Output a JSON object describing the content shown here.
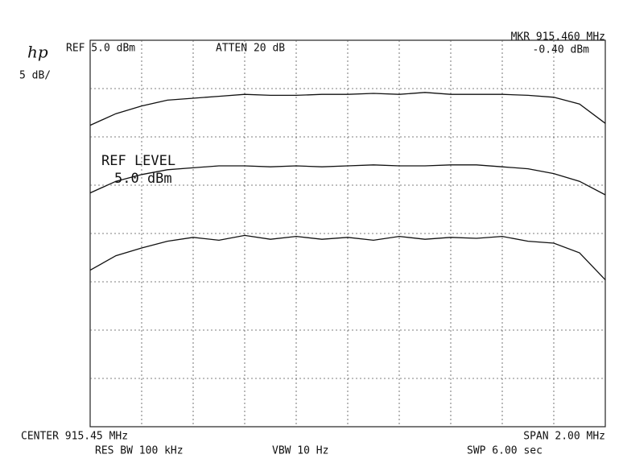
{
  "chart_data": {
    "type": "line",
    "logo": "hp",
    "ref": "REF  5.0 dBm",
    "atten": "ATTEN 20 dB",
    "marker_freq": "MKR 915.460 MHz",
    "marker_level": "-0.40 dBm",
    "scale": "5 dB/",
    "ref_level_label": "REF LEVEL",
    "ref_level_value": "5.0 dBm",
    "center": "CENTER 915.45 MHz",
    "span": "SPAN 2.00 MHz",
    "res_bw": "RES BW 100 kHz",
    "vbw": "VBW 10  Hz",
    "sweep": "SWP 6.00  sec",
    "xlim": [
      914.45,
      916.45
    ],
    "ylim": [
      -35,
      5
    ],
    "grid": true,
    "x": [
      914.45,
      914.55,
      914.65,
      914.75,
      914.85,
      914.95,
      915.05,
      915.15,
      915.25,
      915.35,
      915.45,
      915.55,
      915.65,
      915.75,
      915.85,
      915.95,
      916.05,
      916.15,
      916.25,
      916.35,
      916.45
    ],
    "series": [
      {
        "color": "#111111",
        "values": [
          -3.8,
          -2.6,
          -1.8,
          -1.2,
          -1.0,
          -0.8,
          -0.6,
          -0.7,
          -0.7,
          -0.6,
          -0.6,
          -0.5,
          -0.6,
          -0.4,
          -0.6,
          -0.6,
          -0.6,
          -0.7,
          -0.9,
          -1.6,
          -3.6
        ]
      },
      {
        "color": "#111111",
        "values": [
          -10.8,
          -9.6,
          -8.9,
          -8.4,
          -8.2,
          -8.0,
          -8.0,
          -8.1,
          -8.0,
          -8.1,
          -8.0,
          -7.9,
          -8.0,
          -8.0,
          -7.9,
          -7.9,
          -8.1,
          -8.3,
          -8.8,
          -9.6,
          -11.0
        ]
      },
      {
        "color": "#111111",
        "values": [
          -18.8,
          -17.3,
          -16.5,
          -15.8,
          -15.4,
          -15.7,
          -15.2,
          -15.6,
          -15.3,
          -15.6,
          -15.4,
          -15.7,
          -15.3,
          -15.6,
          -15.4,
          -15.5,
          -15.3,
          -15.8,
          -16.0,
          -17.0,
          -19.8
        ]
      }
    ]
  }
}
